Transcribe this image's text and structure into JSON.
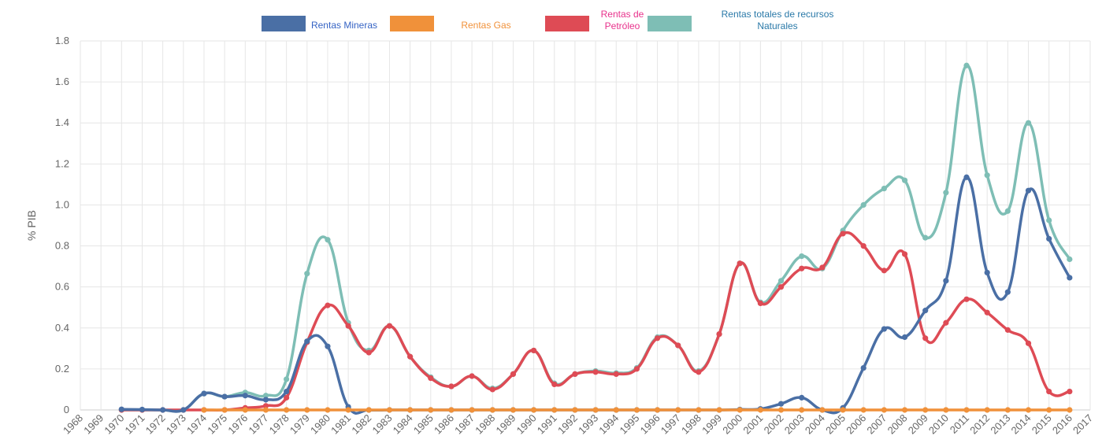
{
  "chart_data": {
    "type": "line",
    "ylabel": "% PIB",
    "xlabel": "",
    "ylim": [
      0,
      1.8
    ],
    "yticks": [
      0,
      0.2,
      0.4,
      0.6,
      0.8,
      1.0,
      1.2,
      1.4,
      1.6,
      1.8
    ],
    "ytick_labels": [
      "0",
      "0.2",
      "0.4",
      "0.6",
      "0.8",
      "1.0",
      "1.2",
      "1.4",
      "1.6",
      "1.8"
    ],
    "categories": [
      "1968",
      "1969",
      "1970",
      "1971",
      "1972",
      "1973",
      "1974",
      "1975",
      "1976",
      "1977",
      "1978",
      "1979",
      "1980",
      "1981",
      "1982",
      "1983",
      "1984",
      "1985",
      "1986",
      "1987",
      "1988",
      "1989",
      "1990",
      "1991",
      "1992",
      "1993",
      "1994",
      "1995",
      "1996",
      "1997",
      "1998",
      "1999",
      "2000",
      "2001",
      "2002",
      "2003",
      "2004",
      "2005",
      "2006",
      "2007",
      "2008",
      "2009",
      "2010",
      "2011",
      "2012",
      "2013",
      "2014",
      "2015",
      "2016",
      "2017"
    ],
    "grid": true,
    "legend_position": "top-center",
    "series": [
      {
        "name": "Rentas totales de recursos Naturales",
        "legend_lines": [
          "Rentas totales de recursos",
          "Naturales"
        ],
        "color": "#7ebeb5",
        "label_color": "#2a79a8",
        "values": [
          null,
          null,
          0,
          0,
          0,
          0,
          0.08,
          0.065,
          0.085,
          0.07,
          0.15,
          0.665,
          0.83,
          0.425,
          0.29,
          0.41,
          0.26,
          0.16,
          0.115,
          0.165,
          0.105,
          0.175,
          0.29,
          0.13,
          0.175,
          0.19,
          0.18,
          0.205,
          0.355,
          0.315,
          0.19,
          0.37,
          0.715,
          0.525,
          0.63,
          0.75,
          0.69,
          0.875,
          1.0,
          1.08,
          1.12,
          0.84,
          1.06,
          1.68,
          1.145,
          0.97,
          1.4,
          0.925,
          0.735,
          null
        ]
      },
      {
        "name": "Rentas de Petróleo",
        "legend_lines": [
          "Rentas de",
          "Petróleo"
        ],
        "color": "#de4b55",
        "label_color": "#e8328c",
        "values": [
          null,
          null,
          0,
          0,
          0,
          0,
          0,
          0,
          0.01,
          0.02,
          0.06,
          0.33,
          0.51,
          0.41,
          0.28,
          0.41,
          0.26,
          0.155,
          0.115,
          0.165,
          0.1,
          0.175,
          0.29,
          0.125,
          0.175,
          0.185,
          0.175,
          0.2,
          0.35,
          0.315,
          0.185,
          0.37,
          0.715,
          0.52,
          0.6,
          0.69,
          0.695,
          0.86,
          0.8,
          0.68,
          0.76,
          0.35,
          0.425,
          0.54,
          0.475,
          0.39,
          0.325,
          0.09,
          0.09,
          null
        ]
      },
      {
        "name": "Rentas Mineras",
        "legend_lines": [
          "Rentas Mineras"
        ],
        "color": "#4a6fa5",
        "label_color": "#3563c4",
        "values": [
          null,
          null,
          0.003,
          0.002,
          0,
          0,
          0.08,
          0.065,
          0.07,
          0.05,
          0.09,
          0.335,
          0.31,
          0.015,
          0,
          0,
          0,
          0,
          0,
          0,
          0,
          0,
          0,
          0,
          0,
          0,
          0,
          0,
          0,
          0,
          0,
          0,
          0.002,
          0.005,
          0.03,
          0.06,
          0,
          0.01,
          0.205,
          0.395,
          0.355,
          0.485,
          0.63,
          1.135,
          0.67,
          0.575,
          1.07,
          0.835,
          0.645,
          null
        ]
      },
      {
        "name": "Rentas Gas",
        "legend_lines": [
          "Rentas Gas"
        ],
        "color": "#f0913a",
        "label_color": "#f0913a",
        "values": [
          null,
          null,
          null,
          null,
          null,
          null,
          0,
          0,
          0,
          0,
          0,
          0,
          0,
          0,
          0,
          0,
          0,
          0,
          0,
          0,
          0,
          0,
          0,
          0,
          0,
          0,
          0,
          0,
          0,
          0,
          0,
          0,
          0,
          0,
          0,
          0,
          0,
          0,
          0,
          0,
          0,
          0,
          0,
          0,
          0,
          0,
          0,
          0,
          0,
          null
        ]
      }
    ],
    "legend_order": [
      "Rentas Mineras",
      "Rentas Gas",
      "Rentas de Petróleo",
      "Rentas totales de recursos Naturales"
    ]
  }
}
